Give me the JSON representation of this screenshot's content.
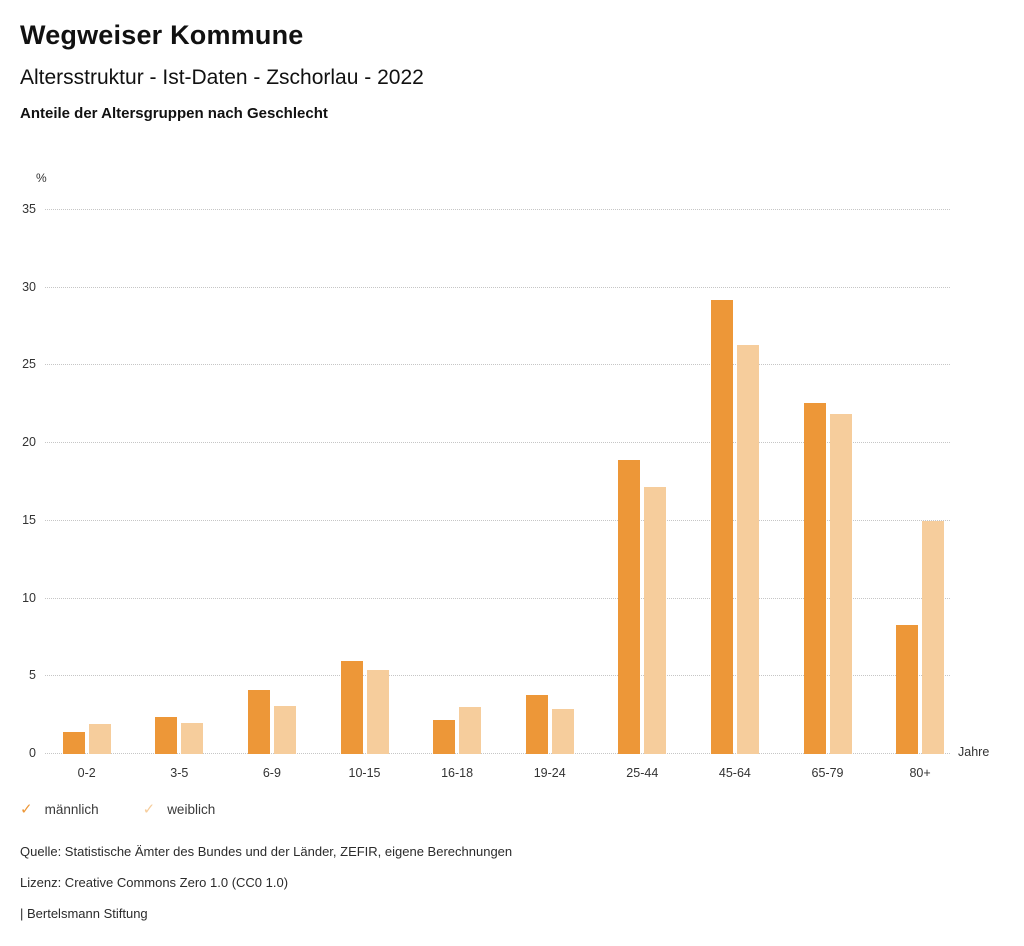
{
  "header": {
    "title": "Wegweiser Kommune",
    "subtitle": "Altersstruktur - Ist-Daten - Zschorlau - 2022",
    "chart_heading": "Anteile der Altersgruppen nach Geschlecht"
  },
  "chart_data": {
    "type": "bar",
    "title": "Anteile der Altersgruppen nach Geschlecht",
    "categories": [
      "0-2",
      "3-5",
      "6-9",
      "10-15",
      "16-18",
      "19-24",
      "25-44",
      "45-64",
      "65-79",
      "80+"
    ],
    "series": [
      {
        "name": "männlich",
        "color": "#ED9738",
        "values": [
          1.4,
          2.4,
          4.1,
          6.0,
          2.2,
          3.8,
          18.9,
          29.2,
          22.6,
          8.3
        ]
      },
      {
        "name": "weiblich",
        "color": "#F6CD9C",
        "values": [
          1.9,
          2.0,
          3.1,
          5.4,
          3.0,
          2.9,
          17.2,
          26.3,
          21.9,
          15.0
        ]
      }
    ],
    "xlabel": "Jahre",
    "ylabel": "%",
    "ylim": [
      0,
      35
    ],
    "ytick_step": 5,
    "yticks": [
      0,
      5,
      10,
      15,
      20,
      25,
      30,
      35
    ],
    "grid": "horizontal-dotted",
    "legend_position": "bottom-left"
  },
  "legend": {
    "items": [
      {
        "label": "männlich",
        "color": "#ED9738",
        "icon": "check-icon"
      },
      {
        "label": "weiblich",
        "color": "#F6CD9C",
        "icon": "check-icon"
      }
    ]
  },
  "footer": {
    "source": "Quelle: Statistische Ämter des Bundes und der Länder, ZEFIR, eigene Berechnungen",
    "license": "Lizenz: Creative Commons Zero 1.0 (CC0 1.0)",
    "brand": "| Bertelsmann Stiftung"
  }
}
